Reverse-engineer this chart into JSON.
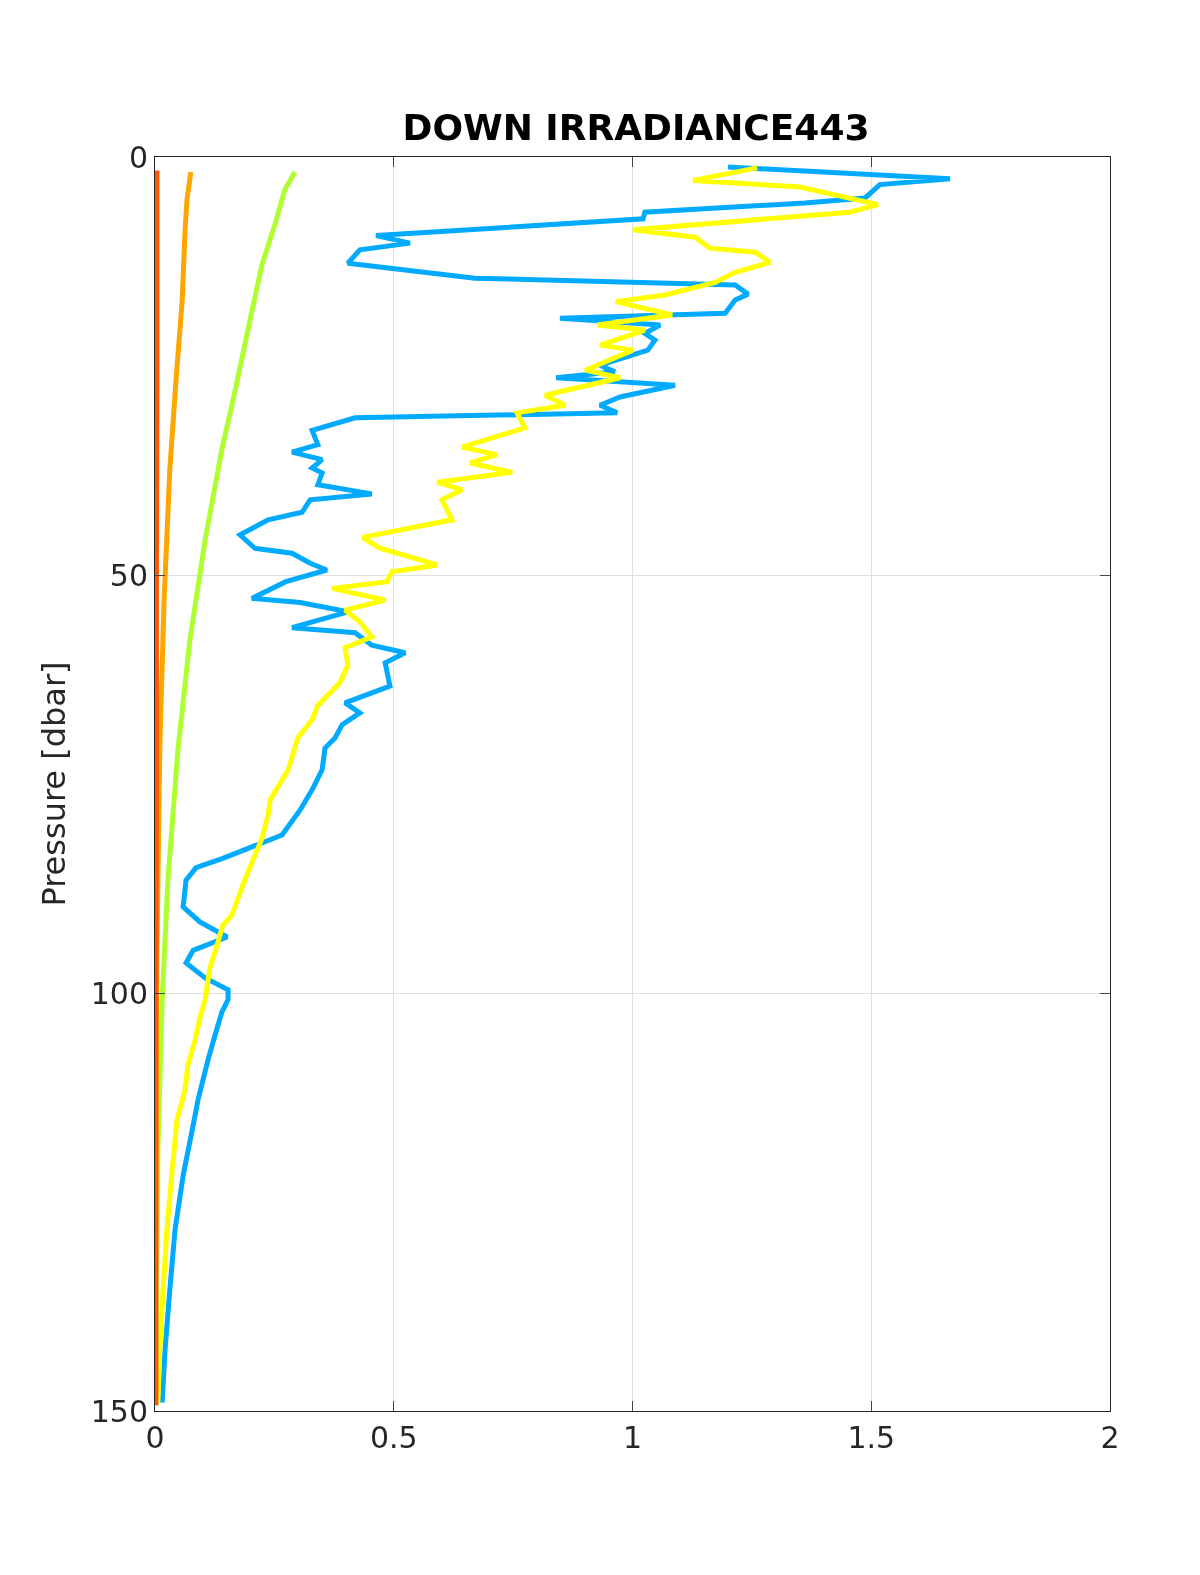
{
  "chart_data": {
    "type": "line",
    "title": "DOWN IRRADIANCE443",
    "ylabel": "Pressure [dbar]",
    "xlim": [
      0,
      2
    ],
    "xticks": [
      0,
      0.5,
      1,
      1.5,
      2
    ],
    "ylim": [
      150,
      0
    ],
    "yticks": [
      0,
      50,
      100,
      150
    ],
    "grid": true,
    "line_style": "solid",
    "series": [
      {
        "color": "#00aaff",
        "x": [
          1.2,
          1.665,
          1.518,
          1.487,
          1.361,
          1.026,
          1.022,
          0.463,
          0.534,
          0.429,
          0.404,
          0.67,
          1.215,
          1.242,
          1.215,
          1.194,
          0.848,
          1.058,
          1.026,
          1.047,
          1.032,
          0.932,
          0.963,
          0.84,
          1.089,
          0.974,
          0.932,
          0.968,
          0.419,
          0.329,
          0.341,
          0.287,
          0.35,
          0.329,
          0.35,
          0.341,
          0.454,
          0.325,
          0.308,
          0.237,
          0.178,
          0.209,
          0.287,
          0.325,
          0.36,
          0.274,
          0.203,
          0.304,
          0.404,
          0.287,
          0.419,
          0.454,
          0.524,
          0.482,
          0.492,
          0.398,
          0.429,
          0.392,
          0.377,
          0.356,
          0.35,
          0.329,
          0.304,
          0.266,
          0.142,
          0.086,
          0.065,
          0.059,
          0.094,
          0.151,
          0.08,
          0.065,
          0.105,
          0.153,
          0.153,
          0.14,
          0.126,
          0.111,
          0.09,
          0.08,
          0.059,
          0.042,
          0.031,
          0.021,
          0.015
        ],
        "values": [
          1.2,
          2.6,
          3.3,
          4.9,
          5.5,
          6.6,
          7.4,
          9.4,
          10.3,
          11.1,
          12.7,
          14.5,
          15.3,
          16.4,
          17.1,
          18.7,
          19.3,
          20.1,
          21.1,
          21.9,
          23.1,
          24.9,
          25.7,
          26.4,
          27.3,
          28.7,
          29.7,
          30.6,
          31.2,
          32.7,
          34.4,
          35.3,
          36.2,
          37.2,
          37.8,
          39.2,
          40.3,
          41.0,
          42.5,
          43.4,
          45.2,
          46.8,
          47.4,
          48.6,
          49.4,
          50.8,
          52.8,
          53.3,
          54.4,
          56.3,
          56.9,
          58.4,
          59.3,
          60.5,
          63.3,
          65.3,
          66.5,
          67.9,
          69.5,
          70.7,
          73.3,
          75.7,
          78.1,
          81.1,
          83.9,
          85.0,
          86.5,
          89.7,
          91.5,
          93.3,
          94.9,
          96.4,
          98.2,
          99.6,
          100.8,
          102.3,
          105.0,
          108.0,
          112.8,
          115.8,
          121.8,
          128.3,
          135.5,
          142.7,
          149.0
        ]
      },
      {
        "color": "#ffff00",
        "x": [
          1.261,
          1.127,
          1.351,
          1.514,
          1.455,
          1.001,
          1.131,
          1.162,
          1.257,
          1.288,
          1.215,
          1.173,
          1.068,
          0.965,
          1.083,
          0.926,
          1.026,
          0.932,
          1.001,
          0.901,
          0.974,
          0.817,
          0.859,
          0.758,
          0.775,
          0.643,
          0.716,
          0.66,
          0.748,
          0.591,
          0.643,
          0.601,
          0.622,
          0.434,
          0.471,
          0.591,
          0.496,
          0.486,
          0.371,
          0.482,
          0.398,
          0.429,
          0.454,
          0.398,
          0.404,
          0.387,
          0.341,
          0.329,
          0.299,
          0.279,
          0.241,
          0.237,
          0.224,
          0.205,
          0.184,
          0.161,
          0.142,
          0.13,
          0.115,
          0.105,
          0.094,
          0.084,
          0.069,
          0.063,
          0.046,
          0.036,
          0.025,
          0.017,
          0.01,
          0.006
        ],
        "values": [
          1.3,
          2.8,
          3.6,
          5.7,
          6.6,
          8.7,
          9.6,
          10.9,
          11.4,
          12.6,
          13.8,
          15.0,
          16.5,
          17.3,
          18.9,
          20.1,
          20.7,
          22.5,
          23.1,
          25.5,
          26.4,
          28.5,
          29.7,
          30.6,
          32.4,
          34.7,
          35.6,
          36.6,
          37.7,
          38.9,
          39.8,
          41.0,
          43.4,
          45.5,
          46.8,
          48.8,
          49.6,
          50.8,
          51.6,
          53.0,
          54.2,
          55.6,
          57.4,
          58.7,
          60.8,
          62.9,
          65.6,
          67.3,
          69.5,
          73.3,
          76.9,
          78.7,
          81.5,
          84.1,
          87.1,
          90.7,
          91.9,
          94.3,
          97.0,
          100.8,
          103.0,
          105.6,
          108.6,
          111.6,
          115.2,
          121.2,
          128.3,
          135.5,
          142.7,
          149.0
        ]
      },
      {
        "color": "#adff2f",
        "x": [
          0.293,
          0.272,
          0.251,
          0.224,
          0.199,
          0.168,
          0.14,
          0.105,
          0.073,
          0.048,
          0.027,
          0.015,
          0.006,
          0.002
        ],
        "values": [
          1.8,
          3.9,
          8.1,
          12.9,
          19.5,
          27.9,
          35.0,
          45.8,
          57.8,
          70.9,
          86.5,
          100.8,
          118.8,
          149.3
        ]
      },
      {
        "color": "#ffa500",
        "x": [
          0.075,
          0.067,
          0.063,
          0.057,
          0.044,
          0.031,
          0.019,
          0.01,
          0.004,
          0
        ],
        "values": [
          1.8,
          5.1,
          8.7,
          17.1,
          26.7,
          37.4,
          53.0,
          70.9,
          94.9,
          149.3
        ]
      },
      {
        "color": "#ff5a00",
        "x": [
          0.004,
          0.004,
          0.003,
          0.003,
          0.002,
          0.002,
          0.002
        ],
        "values": [
          1.6,
          25,
          50,
          75,
          100,
          125,
          149.3
        ]
      }
    ]
  }
}
